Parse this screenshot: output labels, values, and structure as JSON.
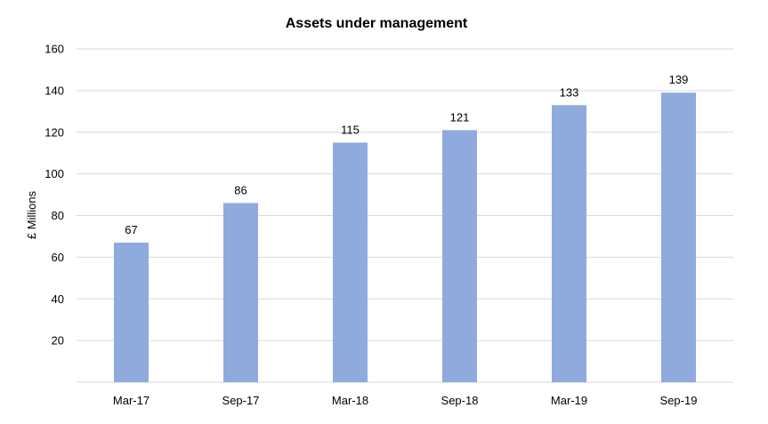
{
  "chart_data": {
    "type": "bar",
    "title": "Assets under management",
    "xlabel": "",
    "ylabel": "£ Millions",
    "categories": [
      "Mar-17",
      "Sep-17",
      "Mar-18",
      "Sep-18",
      "Mar-19",
      "Sep-19"
    ],
    "values": [
      67,
      86,
      115,
      121,
      133,
      139
    ],
    "data_labels": [
      "67",
      "86",
      "115",
      "121",
      "133",
      "139"
    ],
    "ylim": [
      0,
      160
    ],
    "yticks": [
      20,
      40,
      60,
      80,
      100,
      120,
      140,
      160
    ],
    "grid": true,
    "legend": "none",
    "bar_color": "#8faadc",
    "grid_color": "#d9d9d9"
  }
}
